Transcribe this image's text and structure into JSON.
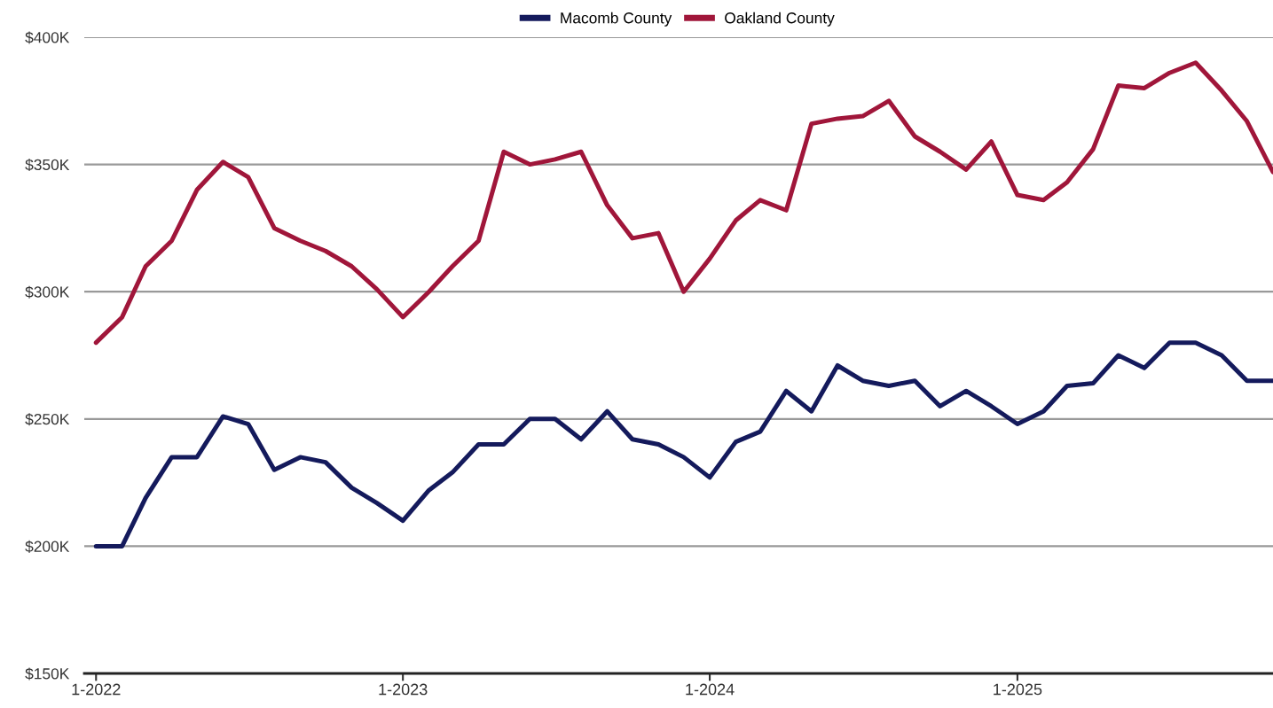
{
  "chart_data": {
    "type": "line",
    "x": [
      "2022-01",
      "2022-02",
      "2022-03",
      "2022-04",
      "2022-05",
      "2022-06",
      "2022-07",
      "2022-08",
      "2022-09",
      "2022-10",
      "2022-11",
      "2022-12",
      "2023-01",
      "2023-02",
      "2023-03",
      "2023-04",
      "2023-05",
      "2023-06",
      "2023-07",
      "2023-08",
      "2023-09",
      "2023-10",
      "2023-11",
      "2023-12",
      "2024-01",
      "2024-02",
      "2024-03",
      "2024-04",
      "2024-05",
      "2024-06",
      "2024-07",
      "2024-08",
      "2024-09",
      "2024-10",
      "2024-11",
      "2024-12",
      "2025-01",
      "2025-02",
      "2025-03",
      "2025-04",
      "2025-05",
      "2025-06",
      "2025-07",
      "2025-08",
      "2025-09",
      "2025-10",
      "2025-11"
    ],
    "series": [
      {
        "name": "Macomb County",
        "color": "#141a5c",
        "values": [
          200,
          200,
          219,
          235,
          235,
          251,
          248,
          230,
          235,
          233,
          223,
          217,
          210,
          222,
          229,
          240,
          240,
          250,
          250,
          242,
          253,
          242,
          240,
          235,
          227,
          241,
          245,
          261,
          253,
          271,
          265,
          263,
          265,
          255,
          261,
          255,
          248,
          253,
          263,
          264,
          275,
          270,
          280,
          280,
          275,
          265,
          265
        ]
      },
      {
        "name": "Oakland County",
        "color": "#a0163a",
        "values": [
          280,
          290,
          310,
          320,
          340,
          351,
          345,
          325,
          320,
          316,
          310,
          301,
          290,
          300,
          310,
          320,
          355,
          350,
          352,
          355,
          334,
          321,
          323,
          300,
          313,
          328,
          336,
          332,
          366,
          368,
          369,
          375,
          361,
          355,
          348,
          359,
          338,
          336,
          343,
          356,
          381,
          380,
          386,
          390,
          379,
          367,
          347
        ]
      }
    ],
    "xlim": [
      "2021-12-18",
      "2025-11"
    ],
    "xticks": [
      {
        "value": "2022-01",
        "label": "1-2022"
      },
      {
        "value": "2023-01",
        "label": "1-2023"
      },
      {
        "value": "2024-01",
        "label": "1-2024"
      },
      {
        "value": "2025-01",
        "label": "1-2025"
      }
    ],
    "ylim": [
      150,
      400
    ],
    "yticks": [
      {
        "value": 150,
        "label": "$150K"
      },
      {
        "value": 200,
        "label": "$200K"
      },
      {
        "value": 250,
        "label": "$250K"
      },
      {
        "value": 300,
        "label": "$300K"
      },
      {
        "value": 350,
        "label": "$350K"
      },
      {
        "value": 400,
        "label": "$400K"
      }
    ],
    "grid": "y",
    "legend": "top",
    "marker": "none",
    "line_style": "solid"
  }
}
